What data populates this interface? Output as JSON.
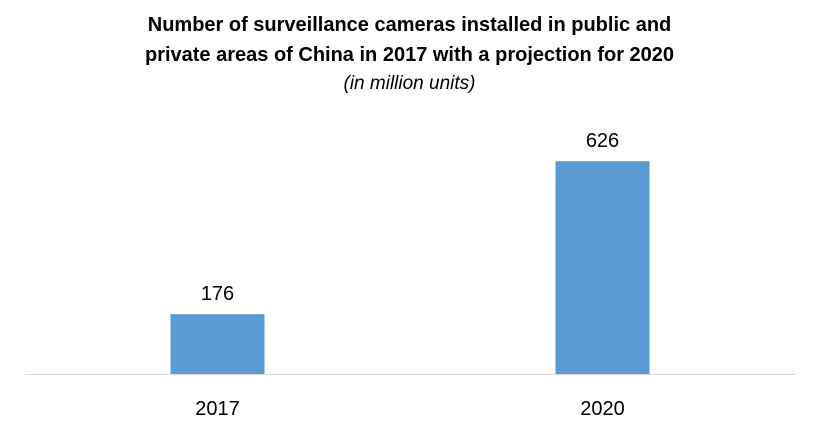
{
  "chart_data": {
    "type": "bar",
    "title_lines": [
      "Number of surveillance cameras installed in public and",
      "private areas of China in 2017 with a projection for 2020"
    ],
    "subtitle": "(in million units)",
    "categories": [
      "2017",
      "2020"
    ],
    "values": [
      176,
      626
    ],
    "data_labels": [
      "176",
      "626"
    ],
    "xlabel": "",
    "ylabel": "",
    "ylim": [
      0,
      700
    ],
    "grid": false,
    "legend": "none",
    "colors": {
      "bar": "#5b9bd5",
      "axis": "#d9d9d9"
    }
  }
}
